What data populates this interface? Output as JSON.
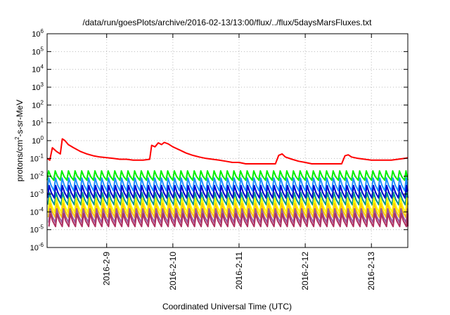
{
  "chart_data": {
    "type": "line",
    "title": "/data/run/goesPlots/archive/2016-02-13/13:00/flux/../flux/5daysMarsFluxes.txt",
    "xlabel": "Coordinated Universal Time (UTC)",
    "ylabel": {
      "pre": "protons/cm",
      "sup": "2",
      "post": "-s-sr-MeV"
    },
    "y_scale": "log",
    "ylim_exp": [
      -6,
      6
    ],
    "y_ticks": [
      {
        "base": "10",
        "exp": "-6",
        "value": -6
      },
      {
        "base": "10",
        "exp": "-5",
        "value": -5
      },
      {
        "base": "10",
        "exp": "-4",
        "value": -4
      },
      {
        "base": "10",
        "exp": "-3",
        "value": -3
      },
      {
        "base": "10",
        "exp": "-2",
        "value": -2
      },
      {
        "base": "10",
        "exp": "-1",
        "value": -1
      },
      {
        "base": "10",
        "exp": "0",
        "value": 0
      },
      {
        "base": "10",
        "exp": "1",
        "value": 1
      },
      {
        "base": "10",
        "exp": "2",
        "value": 2
      },
      {
        "base": "10",
        "exp": "3",
        "value": 3
      },
      {
        "base": "10",
        "exp": "4",
        "value": 4
      },
      {
        "base": "10",
        "exp": "5",
        "value": 5
      },
      {
        "base": "10",
        "exp": "6",
        "value": 6
      }
    ],
    "x_days_range": [
      8.1,
      13.55
    ],
    "x_ticks": [
      {
        "label": "2016-2-9",
        "day": 9
      },
      {
        "label": "2016-2-10",
        "day": 10
      },
      {
        "label": "2016-2-11",
        "day": 11
      },
      {
        "label": "2016-2-12",
        "day": 12
      },
      {
        "label": "2016-2-13",
        "day": 13
      }
    ],
    "grid": true,
    "legend": "none",
    "red_series": {
      "color": "#ff0000",
      "points": [
        [
          8.1,
          0.1
        ],
        [
          8.14,
          0.08
        ],
        [
          8.18,
          0.4
        ],
        [
          8.24,
          0.25
        ],
        [
          8.3,
          0.18
        ],
        [
          8.33,
          1.25
        ],
        [
          8.37,
          1.0
        ],
        [
          8.42,
          0.6
        ],
        [
          8.5,
          0.4
        ],
        [
          8.6,
          0.25
        ],
        [
          8.7,
          0.18
        ],
        [
          8.8,
          0.14
        ],
        [
          8.9,
          0.12
        ],
        [
          9.0,
          0.11
        ],
        [
          9.1,
          0.1
        ],
        [
          9.2,
          0.09
        ],
        [
          9.3,
          0.09
        ],
        [
          9.4,
          0.08
        ],
        [
          9.55,
          0.08
        ],
        [
          9.65,
          0.09
        ],
        [
          9.68,
          0.55
        ],
        [
          9.73,
          0.45
        ],
        [
          9.78,
          0.75
        ],
        [
          9.83,
          0.6
        ],
        [
          9.87,
          0.8
        ],
        [
          9.93,
          0.65
        ],
        [
          10.0,
          0.45
        ],
        [
          10.1,
          0.3
        ],
        [
          10.2,
          0.2
        ],
        [
          10.3,
          0.15
        ],
        [
          10.4,
          0.12
        ],
        [
          10.5,
          0.1
        ],
        [
          10.6,
          0.09
        ],
        [
          10.7,
          0.08
        ],
        [
          10.8,
          0.07
        ],
        [
          10.9,
          0.06
        ],
        [
          11.0,
          0.06
        ],
        [
          11.1,
          0.05
        ],
        [
          11.2,
          0.05
        ],
        [
          11.3,
          0.05
        ],
        [
          11.4,
          0.05
        ],
        [
          11.55,
          0.05
        ],
        [
          11.6,
          0.15
        ],
        [
          11.65,
          0.18
        ],
        [
          11.7,
          0.12
        ],
        [
          11.8,
          0.09
        ],
        [
          11.9,
          0.07
        ],
        [
          12.0,
          0.06
        ],
        [
          12.1,
          0.05
        ],
        [
          12.2,
          0.05
        ],
        [
          12.3,
          0.05
        ],
        [
          12.4,
          0.05
        ],
        [
          12.5,
          0.05
        ],
        [
          12.55,
          0.05
        ],
        [
          12.6,
          0.14
        ],
        [
          12.65,
          0.16
        ],
        [
          12.7,
          0.12
        ],
        [
          12.8,
          0.1
        ],
        [
          12.9,
          0.09
        ],
        [
          13.0,
          0.08
        ],
        [
          13.1,
          0.08
        ],
        [
          13.2,
          0.08
        ],
        [
          13.3,
          0.08
        ],
        [
          13.4,
          0.09
        ],
        [
          13.5,
          0.1
        ],
        [
          13.55,
          0.11
        ]
      ]
    },
    "periodic_series": [
      {
        "color": "#00ee00",
        "peak": 0.02,
        "trough": 0.006
      },
      {
        "color": "#1e90ff",
        "peak": 0.008,
        "trough": 0.0015
      },
      {
        "color": "#0000cd",
        "peak": 0.003,
        "trough": 0.0006
      },
      {
        "color": "#009090",
        "peak": 0.0012,
        "trough": 0.00025
      },
      {
        "color": "#ffff00",
        "peak": 0.0006,
        "trough": 9e-05
      },
      {
        "color": "#ffc800",
        "peak": 0.0003,
        "trough": 5e-05
      },
      {
        "color": "#9a5a9a",
        "peak": 0.00015,
        "trough": 2.5e-05
      },
      {
        "color": "#b03060",
        "peak": 8e-05,
        "trough": 1.5e-05
      }
    ],
    "period_days": 0.1
  }
}
